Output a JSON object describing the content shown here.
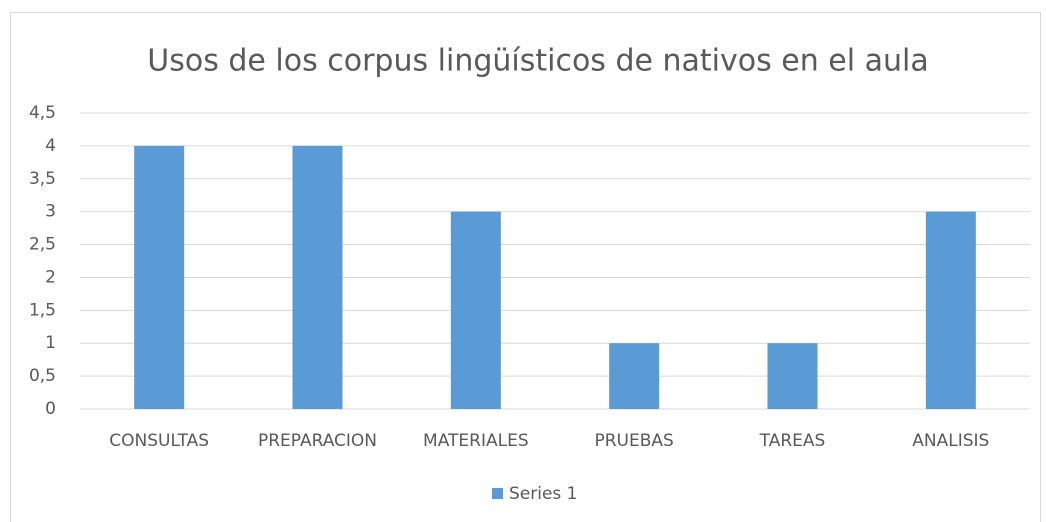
{
  "chart_data": {
    "type": "bar",
    "title": "Usos de los corpus lingüísticos de nativos en el aula",
    "categories": [
      "CONSULTAS",
      "PREPARACION",
      "MATERIALES",
      "PRUEBAS",
      "TAREAS",
      "ANALISIS"
    ],
    "series": [
      {
        "name": "Series 1",
        "color": "#5b9bd5",
        "values": [
          4,
          4,
          3,
          1,
          1,
          3
        ]
      }
    ],
    "ylim": [
      0,
      4.5
    ],
    "yticks": [
      0,
      {
        "value": 0.5,
        "label": "0,5"
      },
      1,
      {
        "value": 1.5,
        "label": "1,5"
      },
      2,
      {
        "value": 2.5,
        "label": "2,5"
      },
      3,
      {
        "value": 3.5,
        "label": "3,5"
      },
      4,
      {
        "value": 4.5,
        "label": "4,5"
      }
    ],
    "grid": true,
    "legend": "bottom"
  }
}
